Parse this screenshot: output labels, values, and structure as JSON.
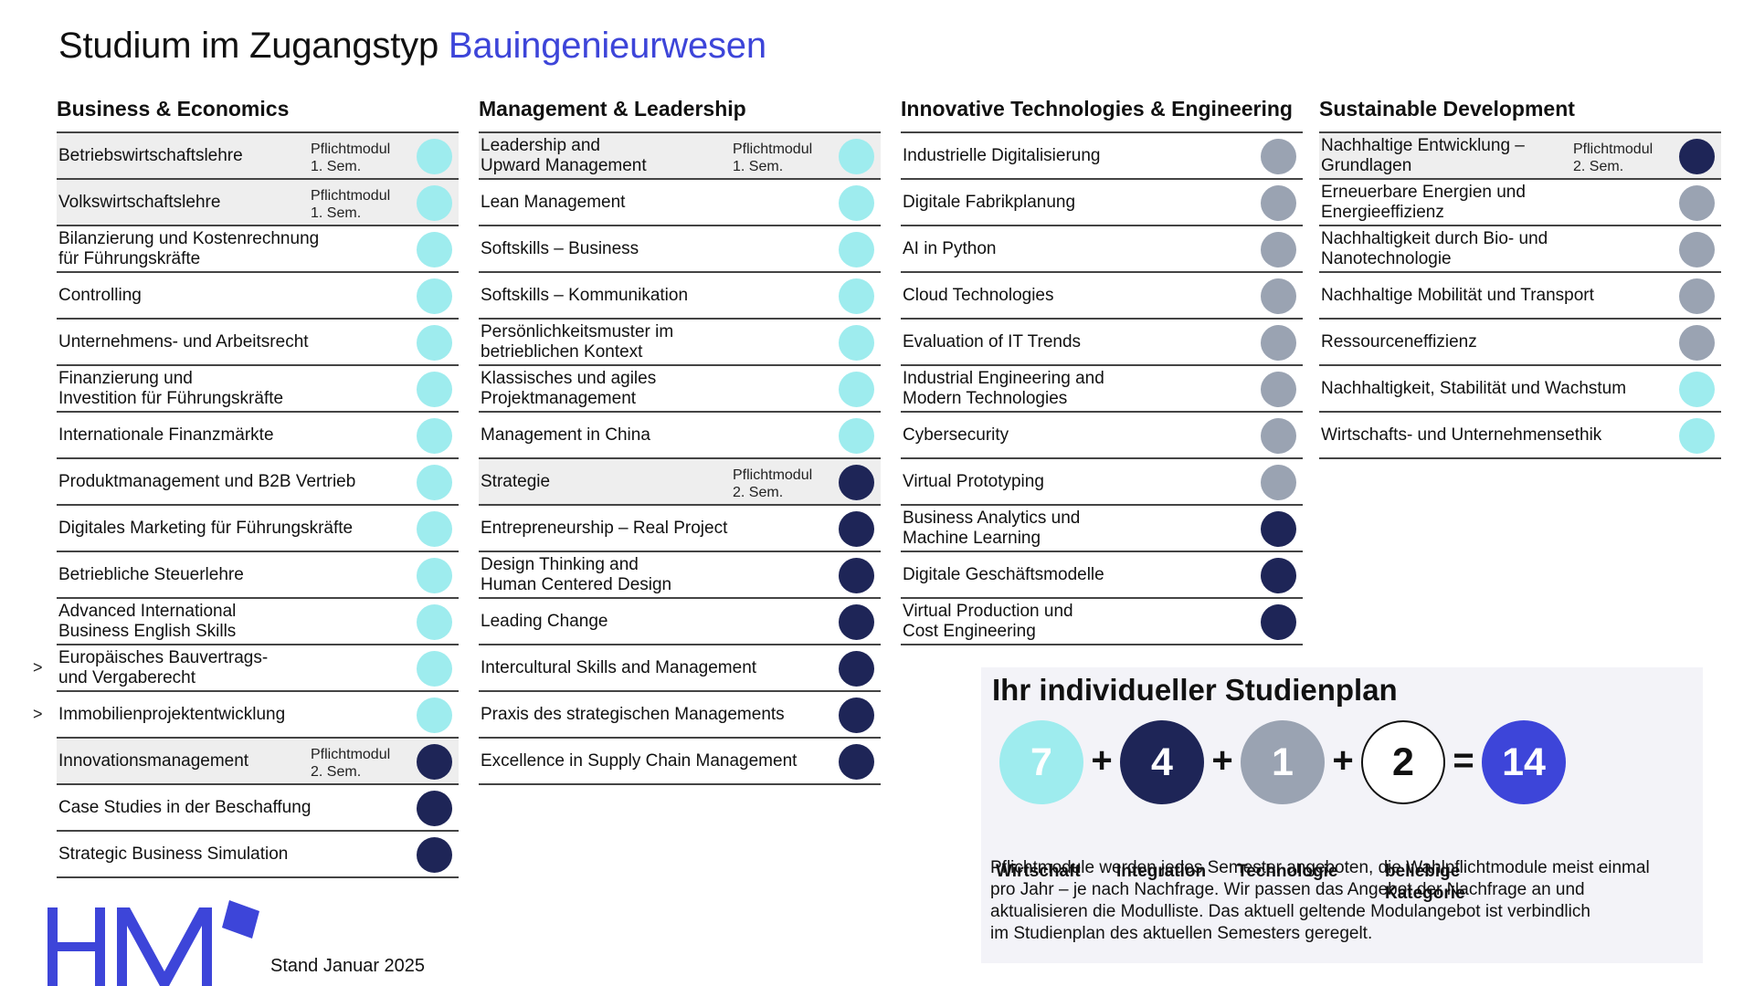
{
  "title": {
    "prefix": "Studium im Zugangstyp",
    "accent": "Bauingenieurwesen"
  },
  "colors": {
    "wirtschaft": "#9eecee",
    "integration": "#1e2557",
    "technologie": "#9aa3b2",
    "beliebig": "#ffffff",
    "total": "#3d45d9",
    "accent": "#3d45d9"
  },
  "columns": [
    {
      "header": "Business & Economics",
      "modules": [
        {
          "name": "Betriebswirtschaftslehre",
          "tag": "Pflichtmodul\n1. Sem.",
          "cat": "wirtschaft",
          "mandatory": true
        },
        {
          "name": "Volkswirtschaftslehre",
          "tag": "Pflichtmodul\n1. Sem.",
          "cat": "wirtschaft",
          "mandatory": true
        },
        {
          "name": "Bilanzierung und Kostenrechnung\nfür Führungskräfte",
          "cat": "wirtschaft"
        },
        {
          "name": "Controlling",
          "cat": "wirtschaft"
        },
        {
          "name": "Unternehmens- und Arbeitsrecht",
          "cat": "wirtschaft"
        },
        {
          "name": "Finanzierung und\nInvestition für Führungskräfte",
          "cat": "wirtschaft"
        },
        {
          "name": "Internationale Finanzmärkte",
          "cat": "wirtschaft"
        },
        {
          "name": "Produktmanagement und B2B Vertrieb",
          "cat": "wirtschaft"
        },
        {
          "name": "Digitales Marketing für Führungskräfte",
          "cat": "wirtschaft"
        },
        {
          "name": "Betriebliche Steuerlehre",
          "cat": "wirtschaft"
        },
        {
          "name": "Advanced International\nBusiness English Skills",
          "cat": "wirtschaft"
        },
        {
          "name": "Europäisches Bauvertrags-\nund Vergaberecht",
          "cat": "wirtschaft",
          "marker": ">"
        },
        {
          "name": "Immobilienprojektentwicklung",
          "cat": "wirtschaft",
          "marker": ">"
        },
        {
          "name": "Innovationsmanagement",
          "tag": "Pflichtmodul\n2. Sem.",
          "cat": "integration",
          "mandatory": true
        },
        {
          "name": "Case Studies in der Beschaffung",
          "cat": "integration"
        },
        {
          "name": "Strategic Business Simulation",
          "cat": "integration"
        }
      ]
    },
    {
      "header": "Management & Leadership",
      "modules": [
        {
          "name": "Leadership and\nUpward Management",
          "tag": "Pflichtmodul\n1. Sem.",
          "cat": "wirtschaft",
          "mandatory": true
        },
        {
          "name": "Lean Management",
          "cat": "wirtschaft"
        },
        {
          "name": "Softskills – Business",
          "cat": "wirtschaft"
        },
        {
          "name": "Softskills – Kommunikation",
          "cat": "wirtschaft"
        },
        {
          "name": "Persönlichkeitsmuster im\nbetrieblichen Kontext",
          "cat": "wirtschaft"
        },
        {
          "name": "Klassisches und agiles\nProjektmanagement",
          "cat": "wirtschaft"
        },
        {
          "name": "Management in China",
          "cat": "wirtschaft"
        },
        {
          "name": "Strategie",
          "tag": "Pflichtmodul\n2. Sem.",
          "cat": "integration",
          "mandatory": true
        },
        {
          "name": "Entrepreneurship – Real Project",
          "cat": "integration"
        },
        {
          "name": "Design Thinking and\nHuman Centered Design",
          "cat": "integration"
        },
        {
          "name": "Leading Change",
          "cat": "integration"
        },
        {
          "name": "Intercultural Skills and Management",
          "cat": "integration"
        },
        {
          "name": "Praxis des strategischen Managements",
          "cat": "integration"
        },
        {
          "name": "Excellence in Supply Chain Management",
          "cat": "integration"
        }
      ]
    },
    {
      "header": "Innovative Technologies & Engineering",
      "modules": [
        {
          "name": "Industrielle Digitalisierung",
          "cat": "technologie"
        },
        {
          "name": "Digitale Fabrikplanung",
          "cat": "technologie"
        },
        {
          "name": "AI in Python",
          "cat": "technologie"
        },
        {
          "name": "Cloud Technologies",
          "cat": "technologie"
        },
        {
          "name": "Evaluation of IT Trends",
          "cat": "technologie"
        },
        {
          "name": "Industrial Engineering and\nModern Technologies",
          "cat": "technologie"
        },
        {
          "name": "Cybersecurity",
          "cat": "technologie"
        },
        {
          "name": "Virtual Prototyping",
          "cat": "technologie"
        },
        {
          "name": "Business Analytics und\nMachine Learning",
          "cat": "integration"
        },
        {
          "name": "Digitale Geschäftsmodelle",
          "cat": "integration"
        },
        {
          "name": "Virtual Production und\nCost Engineering",
          "cat": "integration"
        }
      ]
    },
    {
      "header": "Sustainable Development",
      "modules": [
        {
          "name": "Nachhaltige Entwicklung –\nGrundlagen",
          "tag": "Pflichtmodul\n2. Sem.",
          "cat": "integration",
          "mandatory": true
        },
        {
          "name": "Erneuerbare Energien und\nEnergieeffizienz",
          "cat": "technologie"
        },
        {
          "name": "Nachhaltigkeit durch Bio- und\nNanotechnologie",
          "cat": "technologie"
        },
        {
          "name": "Nachhaltige Mobilität und Transport",
          "cat": "technologie"
        },
        {
          "name": "Ressourceneffizienz",
          "cat": "technologie"
        },
        {
          "name": "Nachhaltigkeit, Stabilität und Wachstum",
          "cat": "wirtschaft"
        },
        {
          "name": "Wirtschafts- und Unternehmensethik",
          "cat": "wirtschaft"
        }
      ]
    }
  ],
  "plan": {
    "title": "Ihr individueller Studienplan",
    "terms": [
      {
        "value": "7",
        "label": "Wirtschaft",
        "cat": "wirtschaft"
      },
      {
        "value": "4",
        "label": "Integration",
        "cat": "integration"
      },
      {
        "value": "1",
        "label": "Technologie",
        "cat": "technologie"
      },
      {
        "value": "2",
        "label": "beliebige\nKategorie",
        "cat": "beliebig"
      }
    ],
    "total": "14",
    "op_plus": "+",
    "op_equals": "=",
    "note": "Pflichtmodule werden jedes Semester angeboten, die Wahlpflichtmodule meist einmal\npro Jahr – je nach Nachfrage. Wir passen das Angebot der Nachfrage an und\naktualisieren die Modulliste. Das aktuell geltende Modulangebot ist verbindlich\nim Studienplan des aktuellen Semesters geregelt."
  },
  "footer": {
    "stand": "Stand Januar 2025"
  }
}
